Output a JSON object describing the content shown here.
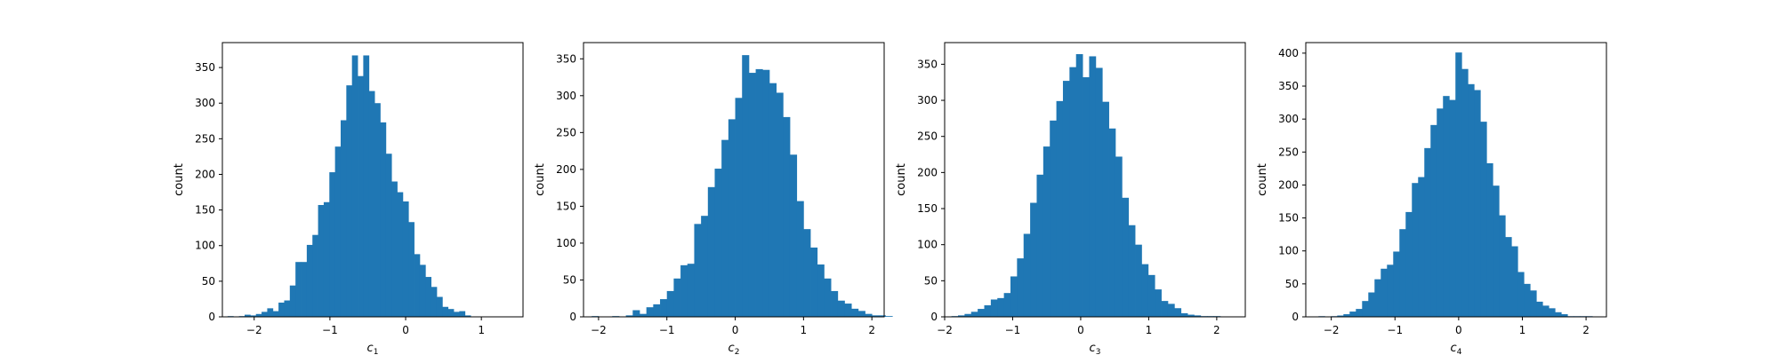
{
  "chart_data": [
    {
      "type": "bar",
      "xlabel_main": "c",
      "xlabel_sub": "1",
      "ylabel": "count",
      "xlim": [
        -2.42,
        1.55
      ],
      "ylim": [
        0,
        385
      ],
      "xticks": [
        -2,
        -1,
        0,
        1
      ],
      "yticks": [
        0,
        50,
        100,
        150,
        200,
        250,
        300,
        350
      ],
      "bin_start": -2.35,
      "bin_width": 0.0746,
      "values": [
        1,
        0,
        1,
        3,
        2,
        4,
        7,
        12,
        8,
        20,
        23,
        44,
        77,
        77,
        101,
        115,
        157,
        161,
        203,
        239,
        276,
        325,
        367,
        338,
        367,
        317,
        300,
        273,
        229,
        190,
        175,
        162,
        133,
        88,
        73,
        56,
        42,
        28,
        14,
        11,
        7,
        8,
        2
      ]
    },
    {
      "type": "bar",
      "xlabel_main": "c",
      "xlabel_sub": "2",
      "ylabel": "count",
      "xlim": [
        -2.22,
        2.18
      ],
      "ylim": [
        0,
        372
      ],
      "xticks": [
        -2,
        -1,
        0,
        1,
        2
      ],
      "yticks": [
        0,
        50,
        100,
        150,
        200,
        250,
        300,
        350
      ],
      "bin_start": -2.1,
      "bin_width": 0.1,
      "values": [
        1,
        0,
        0,
        1,
        0,
        2,
        9,
        4,
        13,
        17,
        24,
        35,
        52,
        70,
        72,
        126,
        137,
        176,
        201,
        240,
        268,
        297,
        355,
        331,
        336,
        335,
        317,
        304,
        271,
        220,
        157,
        119,
        94,
        71,
        52,
        35,
        22,
        18,
        11,
        8,
        4,
        2,
        2,
        1
      ]
    },
    {
      "type": "bar",
      "xlabel_main": "c",
      "xlabel_sub": "3",
      "ylabel": "count",
      "xlim": [
        -2.0,
        2.42
      ],
      "ylim": [
        0,
        380
      ],
      "xticks": [
        -2,
        -1,
        0,
        1,
        2
      ],
      "yticks": [
        0,
        50,
        100,
        150,
        200,
        250,
        300,
        350
      ],
      "bin_start": -1.9,
      "bin_width": 0.0964,
      "values": [
        1,
        2,
        4,
        7,
        11,
        16,
        24,
        26,
        33,
        56,
        81,
        115,
        158,
        197,
        236,
        272,
        299,
        327,
        346,
        364,
        332,
        361,
        345,
        298,
        261,
        222,
        165,
        127,
        100,
        73,
        58,
        38,
        22,
        18,
        12,
        5,
        3,
        2,
        1,
        1,
        1
      ]
    },
    {
      "type": "bar",
      "xlabel_main": "c",
      "xlabel_sub": "4",
      "ylabel": "count",
      "xlim": [
        -2.4,
        2.32
      ],
      "ylim": [
        0,
        416
      ],
      "xticks": [
        -2,
        -1,
        0,
        1,
        2
      ],
      "yticks": [
        0,
        50,
        100,
        150,
        200,
        250,
        300,
        350,
        400
      ],
      "bin_start": -2.2,
      "bin_width": 0.0977,
      "values": [
        1,
        0,
        1,
        2,
        4,
        8,
        12,
        24,
        37,
        57,
        73,
        79,
        99,
        133,
        159,
        203,
        212,
        256,
        291,
        316,
        335,
        329,
        401,
        376,
        353,
        344,
        296,
        233,
        199,
        154,
        121,
        107,
        68,
        50,
        40,
        23,
        17,
        13,
        7,
        4,
        1,
        1,
        1,
        1
      ]
    }
  ]
}
